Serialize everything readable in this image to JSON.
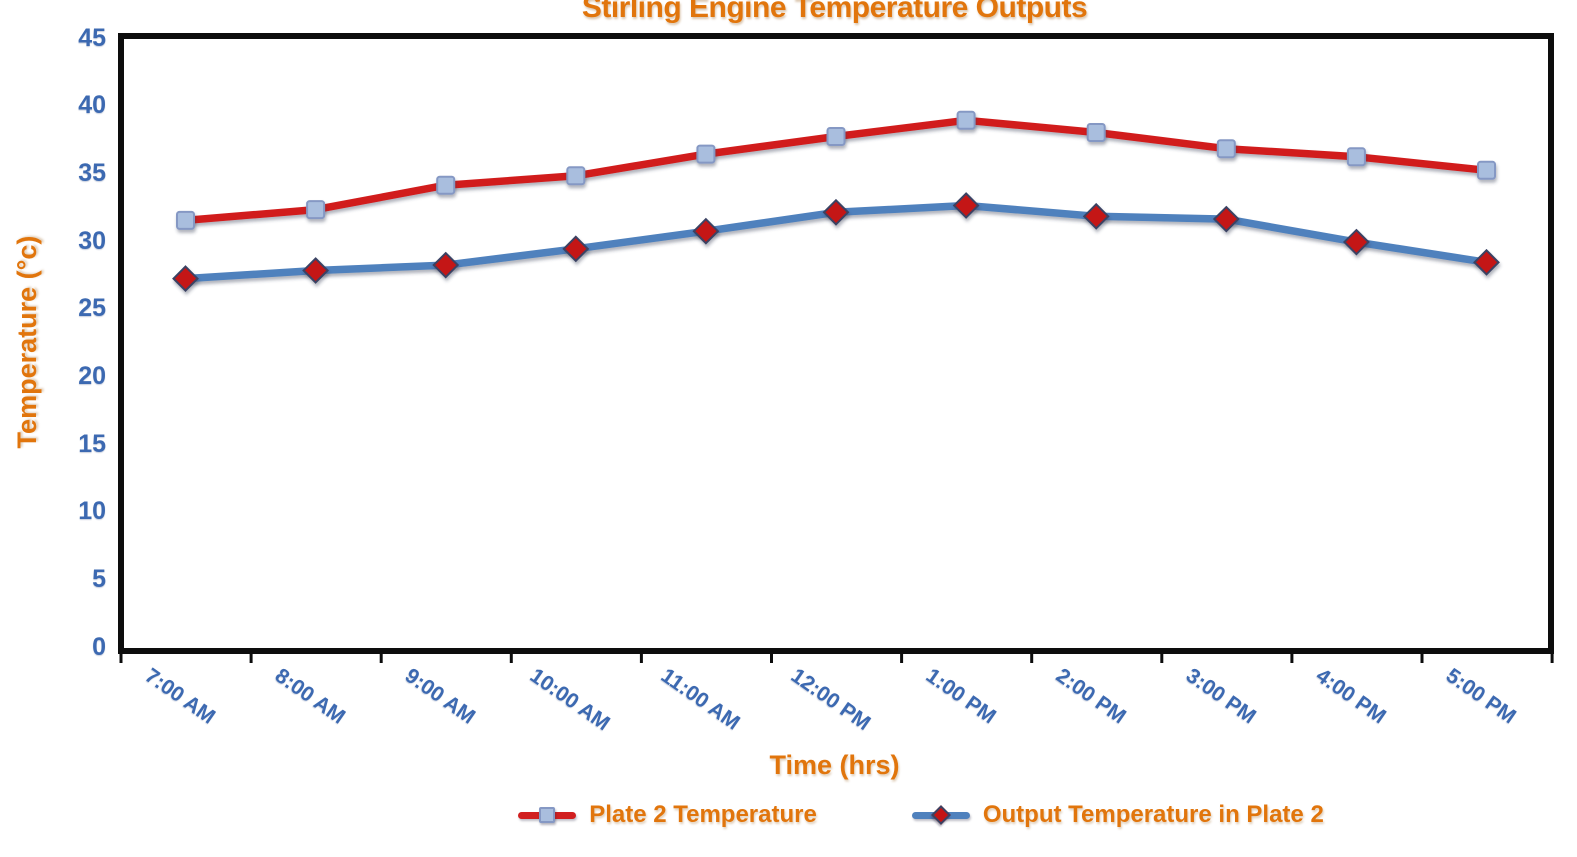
{
  "chart_data": {
    "type": "line",
    "title": "Stirling Engine Temperature Outputs",
    "xlabel": "Time (hrs)",
    "ylabel": "Temperature (°c)",
    "categories": [
      "7:00 AM",
      "8:00 AM",
      "9:00 AM",
      "10:00 AM",
      "11:00 AM",
      "12:00 PM",
      "1:00 PM",
      "2:00 PM",
      "3:00 PM",
      "4:00 PM",
      "5:00 PM"
    ],
    "series": [
      {
        "name": "Plate 2 Temperature",
        "values": [
          31.5,
          32.3,
          34.1,
          34.8,
          36.4,
          37.7,
          38.9,
          38.0,
          36.8,
          36.2,
          35.2
        ],
        "line_color": "#d11f1f",
        "marker": "square",
        "marker_fill": "#a9bede",
        "marker_border": "#8598c4"
      },
      {
        "name": "Output Temperature in Plate 2",
        "values": [
          27.2,
          27.8,
          28.2,
          29.4,
          30.7,
          32.1,
          32.6,
          31.8,
          31.6,
          29.9,
          28.4
        ],
        "line_color": "#4f81bd",
        "marker": "diamond",
        "marker_fill": "#c41414",
        "marker_border": "#3a4263"
      }
    ],
    "ylim": [
      0,
      45
    ],
    "ytick_step": 5,
    "ytick_labels": [
      "0",
      "5",
      "10",
      "15",
      "20",
      "25",
      "30",
      "35",
      "40",
      "45"
    ],
    "grid": false,
    "legend_position": "bottom"
  },
  "colors": {
    "title_text": "#e1750c",
    "axis_title_text": "#e1750c",
    "legend_text": "#e1750c",
    "tick_label_text": "#3c69b1",
    "plot_frame": "#0d0d0d",
    "background": "#ffffff"
  }
}
